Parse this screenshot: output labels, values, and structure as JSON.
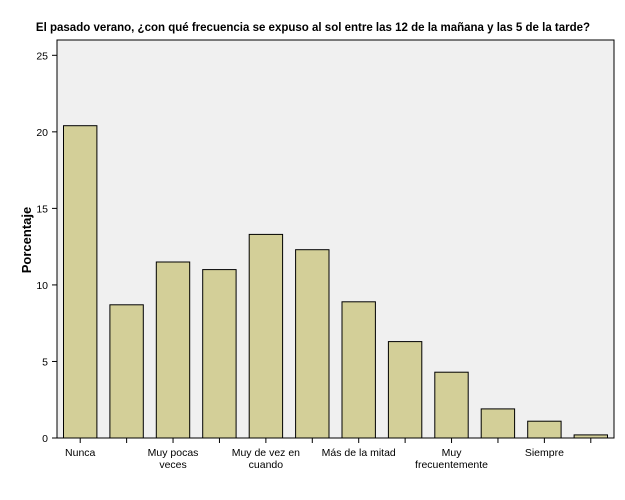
{
  "chart_data": {
    "type": "bar",
    "title": "El pasado verano, ¿con qué frecuencia se expuso al sol entre las 12 de la mañana y las 5 de la tarde?",
    "xlabel": "",
    "ylabel": "Porcentaje",
    "ylim": [
      0,
      26
    ],
    "yticks": [
      0,
      5,
      10,
      15,
      20,
      25
    ],
    "grid": false,
    "categories": [
      "Nunca",
      "",
      "Muy pocas veces",
      "",
      "Muy de vez en cuando",
      "",
      "Más de la mitad",
      "",
      "Muy frecuentemente",
      "",
      "Siempre",
      ""
    ],
    "category_label_lines": [
      [
        "Nunca"
      ],
      [],
      [
        "Muy pocas",
        "veces"
      ],
      [],
      [
        "Muy de vez en",
        "cuando"
      ],
      [],
      [
        "Más de la mitad"
      ],
      [],
      [
        "Muy",
        "frecuentemente"
      ],
      [],
      [
        "Siempre"
      ],
      []
    ],
    "values": [
      20.4,
      8.7,
      11.5,
      11.0,
      13.3,
      12.3,
      8.9,
      6.3,
      4.3,
      1.9,
      1.1,
      0.2
    ],
    "colors": {
      "bar": "#d3cf98",
      "bar_stroke": "#000000",
      "plot_bg": "#f0f0f0",
      "frame": "#000000"
    }
  }
}
